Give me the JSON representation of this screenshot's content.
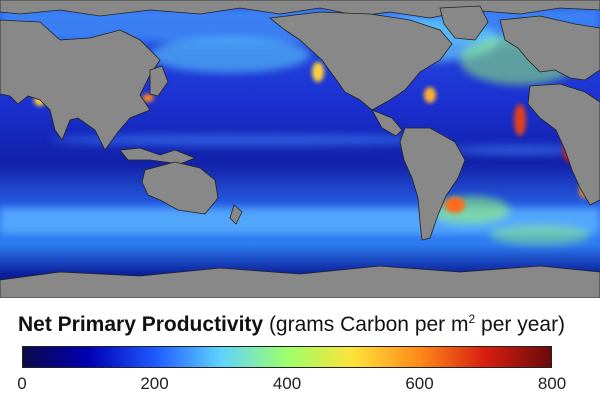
{
  "legend": {
    "title_main": "Net Primary Productivity",
    "title_open": "(grams Carbon per m",
    "title_sup": "2",
    "title_close": " per year)",
    "ticks": [
      "0",
      "200",
      "400",
      "600",
      "800"
    ],
    "range": [
      0,
      800
    ],
    "colorscale": [
      "#0a0a4a",
      "#0000b4",
      "#1e5aff",
      "#5fd3ff",
      "#9cff6a",
      "#ffe23a",
      "#ff8a1a",
      "#d81e10",
      "#6a0a0a"
    ]
  },
  "map": {
    "land_color": "#888888",
    "coast_color": "#222222"
  }
}
